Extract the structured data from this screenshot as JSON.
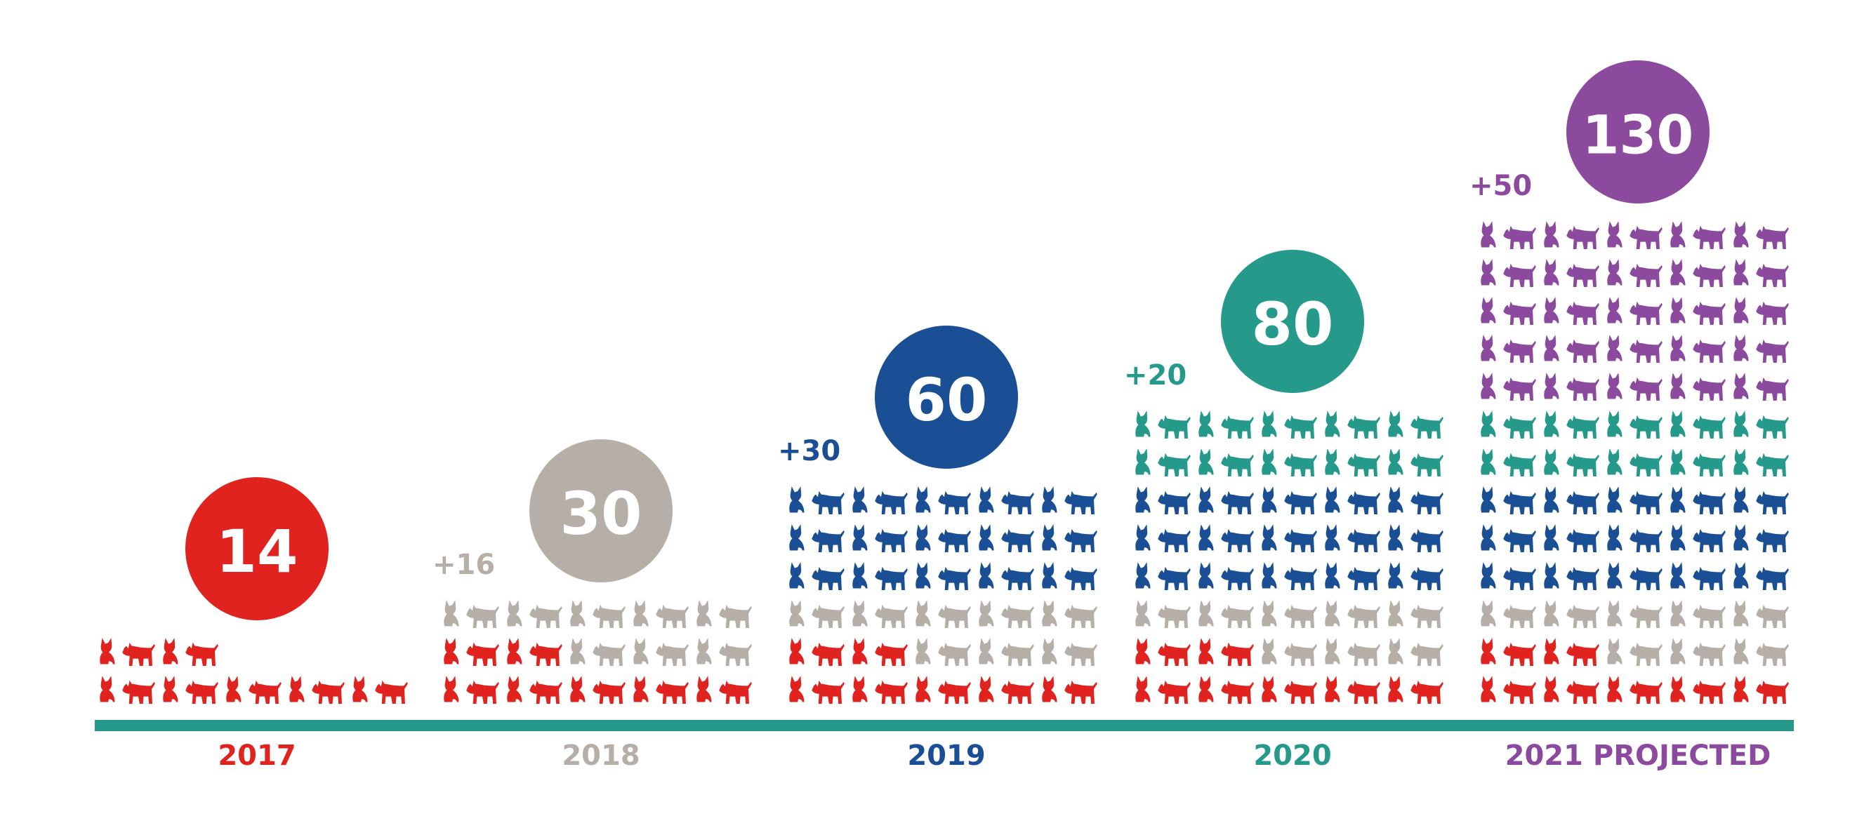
{
  "chart_data": {
    "type": "pictograph",
    "unit": "pet icon (alternating cat and dog)",
    "colors": {
      "2017": "#e1231f",
      "2018": "#b5afa8",
      "2019": "#1a4f96",
      "2020": "#25998a",
      "2021": "#8c4a9f",
      "axis": "#25998a"
    },
    "groups": [
      {
        "year_label": "2017",
        "total": 14,
        "total_label": "14",
        "increment_label": "",
        "color_key": "2017",
        "composition": [
          {
            "color_key": "2017",
            "count": 14
          }
        ]
      },
      {
        "year_label": "2018",
        "total": 30,
        "total_label": "30",
        "increment_label": "+16",
        "color_key": "2018",
        "composition": [
          {
            "color_key": "2017",
            "count": 14
          },
          {
            "color_key": "2018",
            "count": 16
          }
        ]
      },
      {
        "year_label": "2019",
        "total": 60,
        "total_label": "60",
        "increment_label": "+30",
        "color_key": "2019",
        "composition": [
          {
            "color_key": "2017",
            "count": 14
          },
          {
            "color_key": "2018",
            "count": 16
          },
          {
            "color_key": "2019",
            "count": 30
          }
        ]
      },
      {
        "year_label": "2020",
        "total": 80,
        "total_label": "80",
        "increment_label": "+20",
        "color_key": "2020",
        "composition": [
          {
            "color_key": "2017",
            "count": 14
          },
          {
            "color_key": "2018",
            "count": 16
          },
          {
            "color_key": "2019",
            "count": 30
          },
          {
            "color_key": "2020",
            "count": 20
          }
        ]
      },
      {
        "year_label": "2021 PROJECTED",
        "total": 130,
        "total_label": "130",
        "increment_label": "+50",
        "color_key": "2021",
        "composition": [
          {
            "color_key": "2017",
            "count": 14
          },
          {
            "color_key": "2018",
            "count": 16
          },
          {
            "color_key": "2019",
            "count": 30
          },
          {
            "color_key": "2020",
            "count": 20
          },
          {
            "color_key": "2021",
            "count": 50
          }
        ]
      }
    ]
  }
}
